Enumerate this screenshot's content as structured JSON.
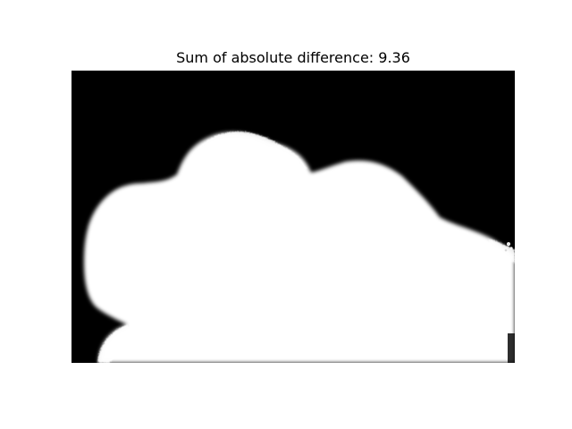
{
  "figure": {
    "title_prefix": "Sum of absolute difference: ",
    "difference_value": "9.36"
  },
  "image": {
    "description": "alpha matte",
    "background_color": "#000000",
    "foreground_color": "#ffffff"
  }
}
